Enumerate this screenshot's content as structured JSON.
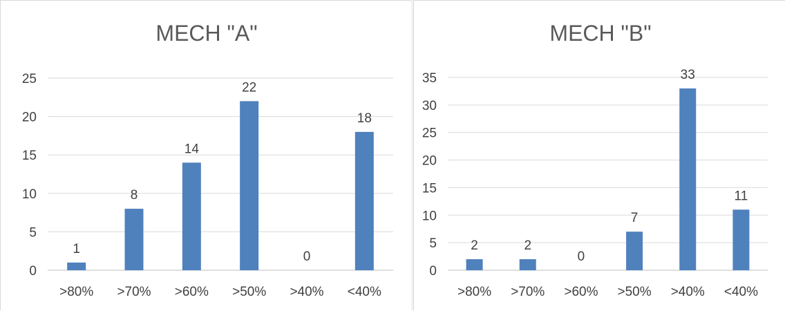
{
  "chart_data": [
    {
      "type": "bar",
      "title": "MECH \"A\"",
      "categories": [
        ">80%",
        ">70%",
        ">60%",
        ">50%",
        ">40%",
        "<40%"
      ],
      "values": [
        1,
        8,
        14,
        22,
        0,
        18
      ],
      "yticks": [
        "0",
        "5",
        "10",
        "15",
        "20",
        "25"
      ],
      "ylim": [
        0,
        25
      ],
      "grid": true,
      "data_labels": true,
      "bar_color": "#4f81bd"
    },
    {
      "type": "bar",
      "title": "MECH \"B\"",
      "categories": [
        ">80%",
        ">70%",
        ">60%",
        ">50%",
        ">40%",
        "<40%"
      ],
      "values": [
        2,
        2,
        0,
        7,
        33,
        11
      ],
      "yticks": [
        "0",
        "5",
        "10",
        "15",
        "20",
        "25",
        "30",
        "35"
      ],
      "ylim": [
        0,
        35
      ],
      "grid": true,
      "data_labels": true,
      "bar_color": "#4f81bd"
    }
  ]
}
